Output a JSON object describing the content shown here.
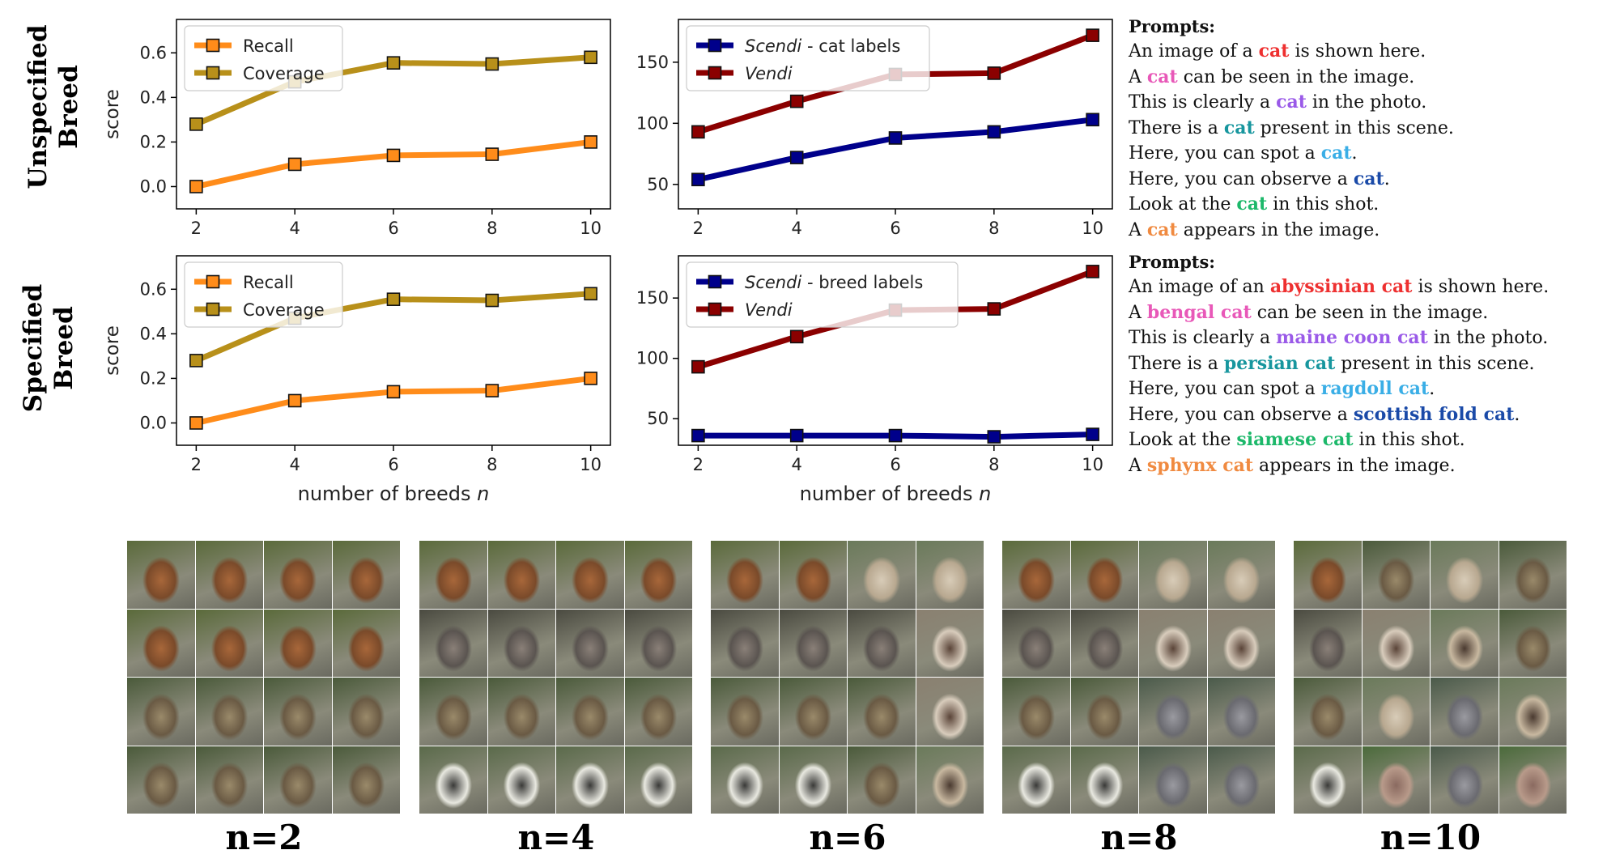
{
  "row_labels": {
    "top": [
      "Unspecified",
      "Breed"
    ],
    "bottom": [
      "Specified",
      "Breed"
    ]
  },
  "prompts_top": {
    "title": "Prompts:",
    "lines": [
      {
        "pre": "An image of a ",
        "hl": "cat",
        "post": " is shown here.",
        "color": "#ee3030"
      },
      {
        "pre": "A ",
        "hl": "cat",
        "post": " can be seen in the image.",
        "color": "#e858b8"
      },
      {
        "pre": "This is clearly a ",
        "hl": "cat",
        "post": " in the photo.",
        "color": "#9a5ae8"
      },
      {
        "pre": "There is a ",
        "hl": "cat",
        "post": " present in this scene.",
        "color": "#17969e"
      },
      {
        "pre": "Here, you can spot a ",
        "hl": "cat",
        "post": ".",
        "color": "#3aaee6"
      },
      {
        "pre": "Here, you can observe a ",
        "hl": "cat",
        "post": ".",
        "color": "#1a4aa8"
      },
      {
        "pre": "Look at the ",
        "hl": "cat",
        "post": " in this shot.",
        "color": "#1cb86a"
      },
      {
        "pre": "A ",
        "hl": "cat",
        "post": " appears in the image.",
        "color": "#f08a40"
      }
    ]
  },
  "prompts_bottom": {
    "title": "Prompts:",
    "lines": [
      {
        "pre": "An image of an ",
        "hl": "abyssinian cat",
        "post": " is shown here.",
        "color": "#ee3030"
      },
      {
        "pre": "A ",
        "hl": "bengal cat",
        "post": " can be seen in the image.",
        "color": "#e858b8"
      },
      {
        "pre": "This is clearly a ",
        "hl": "maine coon cat",
        "post": " in the photo.",
        "color": "#9a5ae8"
      },
      {
        "pre": "There is a ",
        "hl": "persian cat",
        "post": " present in this scene.",
        "color": "#17969e"
      },
      {
        "pre": "Here, you can spot a ",
        "hl": "ragdoll cat",
        "post": ".",
        "color": "#3aaee6"
      },
      {
        "pre": "Here, you can observe a ",
        "hl": "scottish fold cat",
        "post": ".",
        "color": "#1a4aa8"
      },
      {
        "pre": "Look at the ",
        "hl": "siamese cat",
        "post": " in this shot.",
        "color": "#1cb86a"
      },
      {
        "pre": "A ",
        "hl": "sphynx cat",
        "post": " appears in the image.",
        "color": "#f08a40"
      }
    ]
  },
  "image_grids": [
    {
      "caption": "n=2"
    },
    {
      "caption": "n=4"
    },
    {
      "caption": "n=6"
    },
    {
      "caption": "n=8"
    },
    {
      "caption": "n=10"
    }
  ],
  "chart_data": [
    {
      "type": "line",
      "row": "unspecified",
      "x": [
        2,
        4,
        6,
        8,
        10
      ],
      "xticks": [
        "2",
        "4",
        "6",
        "8",
        "10"
      ],
      "xlabel": "",
      "ylabel": "score",
      "ylim": [
        -0.1,
        0.75
      ],
      "yticks": [
        0.0,
        0.2,
        0.4,
        0.6
      ],
      "ytick_labels": [
        "0.0",
        "0.2",
        "0.4",
        "0.6"
      ],
      "legend": "top-left",
      "series": [
        {
          "name": "Recall",
          "color": "#ff8c1a",
          "values": [
            0.0,
            0.1,
            0.14,
            0.145,
            0.2
          ]
        },
        {
          "name": "Coverage",
          "color": "#b8901a",
          "values": [
            0.28,
            0.47,
            0.555,
            0.55,
            0.58
          ]
        }
      ]
    },
    {
      "type": "line",
      "row": "unspecified",
      "x": [
        2,
        4,
        6,
        8,
        10
      ],
      "xticks": [
        "2",
        "4",
        "6",
        "8",
        "10"
      ],
      "xlabel": "",
      "ylabel": "",
      "ylim": [
        30,
        185
      ],
      "yticks": [
        50,
        100,
        150
      ],
      "ytick_labels": [
        "50",
        "100",
        "150"
      ],
      "legend": "top-left",
      "series": [
        {
          "name": "Scendi",
          "name_suffix": " - cat labels",
          "italic": true,
          "color": "#00008b",
          "values": [
            54,
            72,
            88,
            93,
            103
          ]
        },
        {
          "name": "Vendi",
          "name_suffix": "",
          "italic": true,
          "color": "#8b0000",
          "values": [
            93,
            118,
            140,
            141,
            172
          ]
        }
      ]
    },
    {
      "type": "line",
      "row": "specified",
      "x": [
        2,
        4,
        6,
        8,
        10
      ],
      "xticks": [
        "2",
        "4",
        "6",
        "8",
        "10"
      ],
      "xlabel": "number of breeds",
      "xlabel_var": "n",
      "ylabel": "score",
      "ylim": [
        -0.1,
        0.75
      ],
      "yticks": [
        0.0,
        0.2,
        0.4,
        0.6
      ],
      "ytick_labels": [
        "0.0",
        "0.2",
        "0.4",
        "0.6"
      ],
      "legend": "top-left",
      "series": [
        {
          "name": "Recall",
          "color": "#ff8c1a",
          "values": [
            0.0,
            0.1,
            0.14,
            0.145,
            0.2
          ]
        },
        {
          "name": "Coverage",
          "color": "#b8901a",
          "values": [
            0.28,
            0.47,
            0.555,
            0.55,
            0.58
          ]
        }
      ]
    },
    {
      "type": "line",
      "row": "specified",
      "x": [
        2,
        4,
        6,
        8,
        10
      ],
      "xticks": [
        "2",
        "4",
        "6",
        "8",
        "10"
      ],
      "xlabel": "number of breeds",
      "xlabel_var": "n",
      "ylabel": "",
      "ylim": [
        28,
        185
      ],
      "yticks": [
        50,
        100,
        150
      ],
      "ytick_labels": [
        "50",
        "100",
        "150"
      ],
      "legend": "top-left",
      "series": [
        {
          "name": "Scendi",
          "name_suffix": " - breed labels",
          "italic": true,
          "color": "#00008b",
          "values": [
            36,
            36,
            36,
            35,
            37
          ]
        },
        {
          "name": "Vendi",
          "name_suffix": "",
          "italic": true,
          "color": "#8b0000",
          "values": [
            93,
            118,
            140,
            141,
            172
          ]
        }
      ]
    }
  ]
}
